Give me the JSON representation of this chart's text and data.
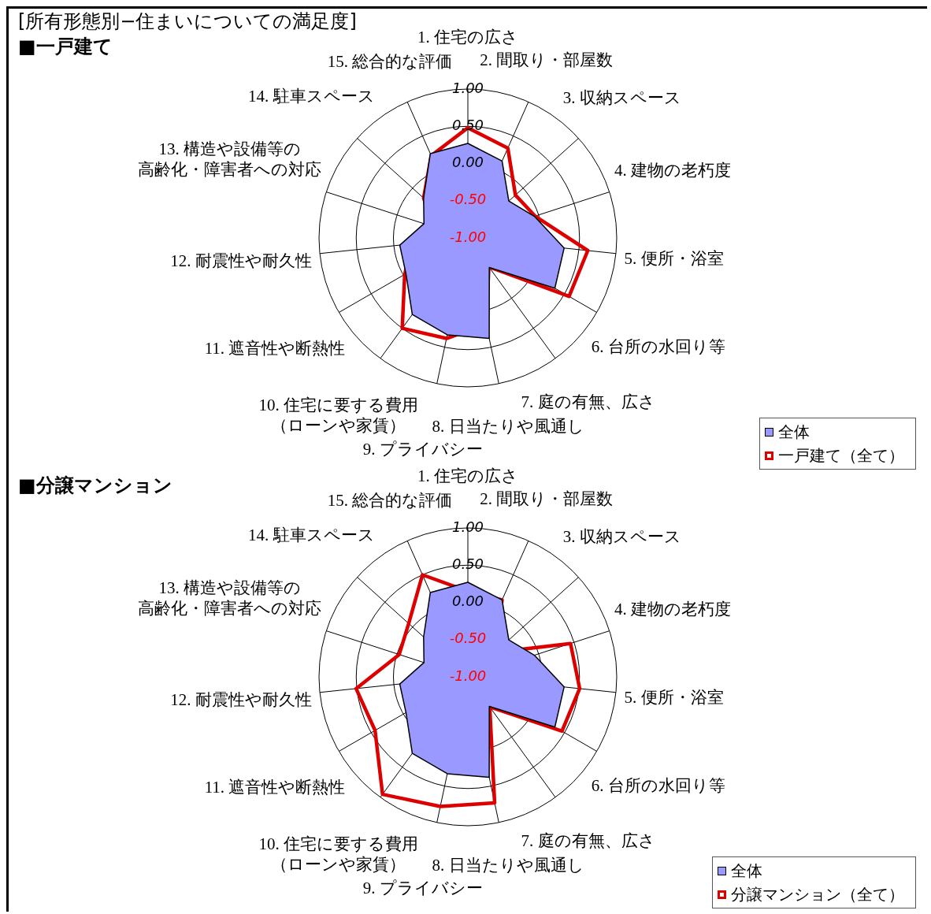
{
  "chart_data": [
    {
      "type": "radar",
      "title": "[所有形態別−住まいについての満足度]",
      "subtitle": "■一戸建て",
      "categories": [
        "1. 住宅の広さ",
        "2. 間取り・部屋数",
        "3. 収納スペース",
        "4. 建物の老朽度",
        "5. 便所・浴室",
        "6. 台所の水回り等",
        "7. 庭の有無、広さ",
        "8. 日当たりや風通し",
        "9. プライバシー",
        "10. 住宅に要する費用（ローンや家賃）",
        "11. 遮音性や断熱性",
        "12. 耐震性や耐久性",
        "13. 構造や設備等の高齢化・障害者への対応",
        "14. 駐車スペース",
        "15. 総合的な評価"
      ],
      "series": [
        {
          "name": "全体",
          "color": "#9999ff",
          "type": "area",
          "values": [
            0.27,
            0.13,
            -0.26,
            -0.06,
            0.3,
            0.35,
            -0.51,
            0.38,
            0.33,
            0.27,
            -0.04,
            -0.08,
            -0.38,
            -0.2,
            0.24
          ]
        },
        {
          "name": "一戸建て（全て）",
          "color": "#dd0000",
          "type": "radar",
          "values": [
            0.48,
            0.32,
            -0.14,
            -0.05,
            0.62,
            0.57,
            -0.52,
            0.18,
            0.38,
            0.5,
            -0.02,
            -0.25,
            -0.52,
            -0.2,
            0.21
          ]
        }
      ],
      "ylim": [
        -1,
        1
      ],
      "yticks": [
        {
          "value": -1,
          "label": "-1.00"
        },
        {
          "value": -0.5,
          "label": "-0.50"
        },
        {
          "value": 0,
          "label": "0.00"
        },
        {
          "value": 0.5,
          "label": "0.50"
        },
        {
          "value": 1,
          "label": "1.00"
        }
      ],
      "grid": true,
      "legend": "bottom right",
      "marker": "none"
    },
    {
      "type": "radar",
      "title": "■分譲マンション",
      "categories": [
        "1. 住宅の広さ",
        "2. 間取り・部屋数",
        "3. 収納スペース",
        "4. 建物の老朽度",
        "5. 便所・浴室",
        "6. 台所の水回り等",
        "7. 庭の有無、広さ",
        "8. 日当たりや風通し",
        "9. プライバシー",
        "10. 住宅に要する費用（ローンや家賃）",
        "11. 遮音性や断熱性",
        "12. 耐震性や耐久性",
        "13. 構造や設備等の高齢化・障害者への対応",
        "14. 駐車スペース",
        "15. 総合的な評価"
      ],
      "series": [
        {
          "name": "全体",
          "color": "#9999ff",
          "type": "area",
          "values": [
            0.27,
            0.13,
            -0.26,
            -0.06,
            0.3,
            0.35,
            -0.51,
            0.38,
            0.33,
            0.27,
            -0.04,
            -0.08,
            -0.38,
            -0.2,
            0.24
          ]
        },
        {
          "name": "分譲マンション（全て）",
          "color": "#dd0000",
          "type": "radar",
          "values": [
            0.15,
            0.13,
            -0.51,
            0.45,
            0.51,
            0.46,
            -0.5,
            0.73,
            0.78,
            0.95,
            0.44,
            0.51,
            -0.03,
            0.07,
            0.5
          ]
        }
      ],
      "ylim": [
        -1,
        1
      ],
      "yticks": [
        {
          "value": -1,
          "label": "-1.00"
        },
        {
          "value": -0.5,
          "label": "-0.50"
        },
        {
          "value": 0,
          "label": "0.00"
        },
        {
          "value": 0.5,
          "label": "0.50"
        },
        {
          "value": 1,
          "label": "1.00"
        }
      ],
      "grid": true,
      "legend": "bottom right",
      "marker": "none"
    }
  ]
}
